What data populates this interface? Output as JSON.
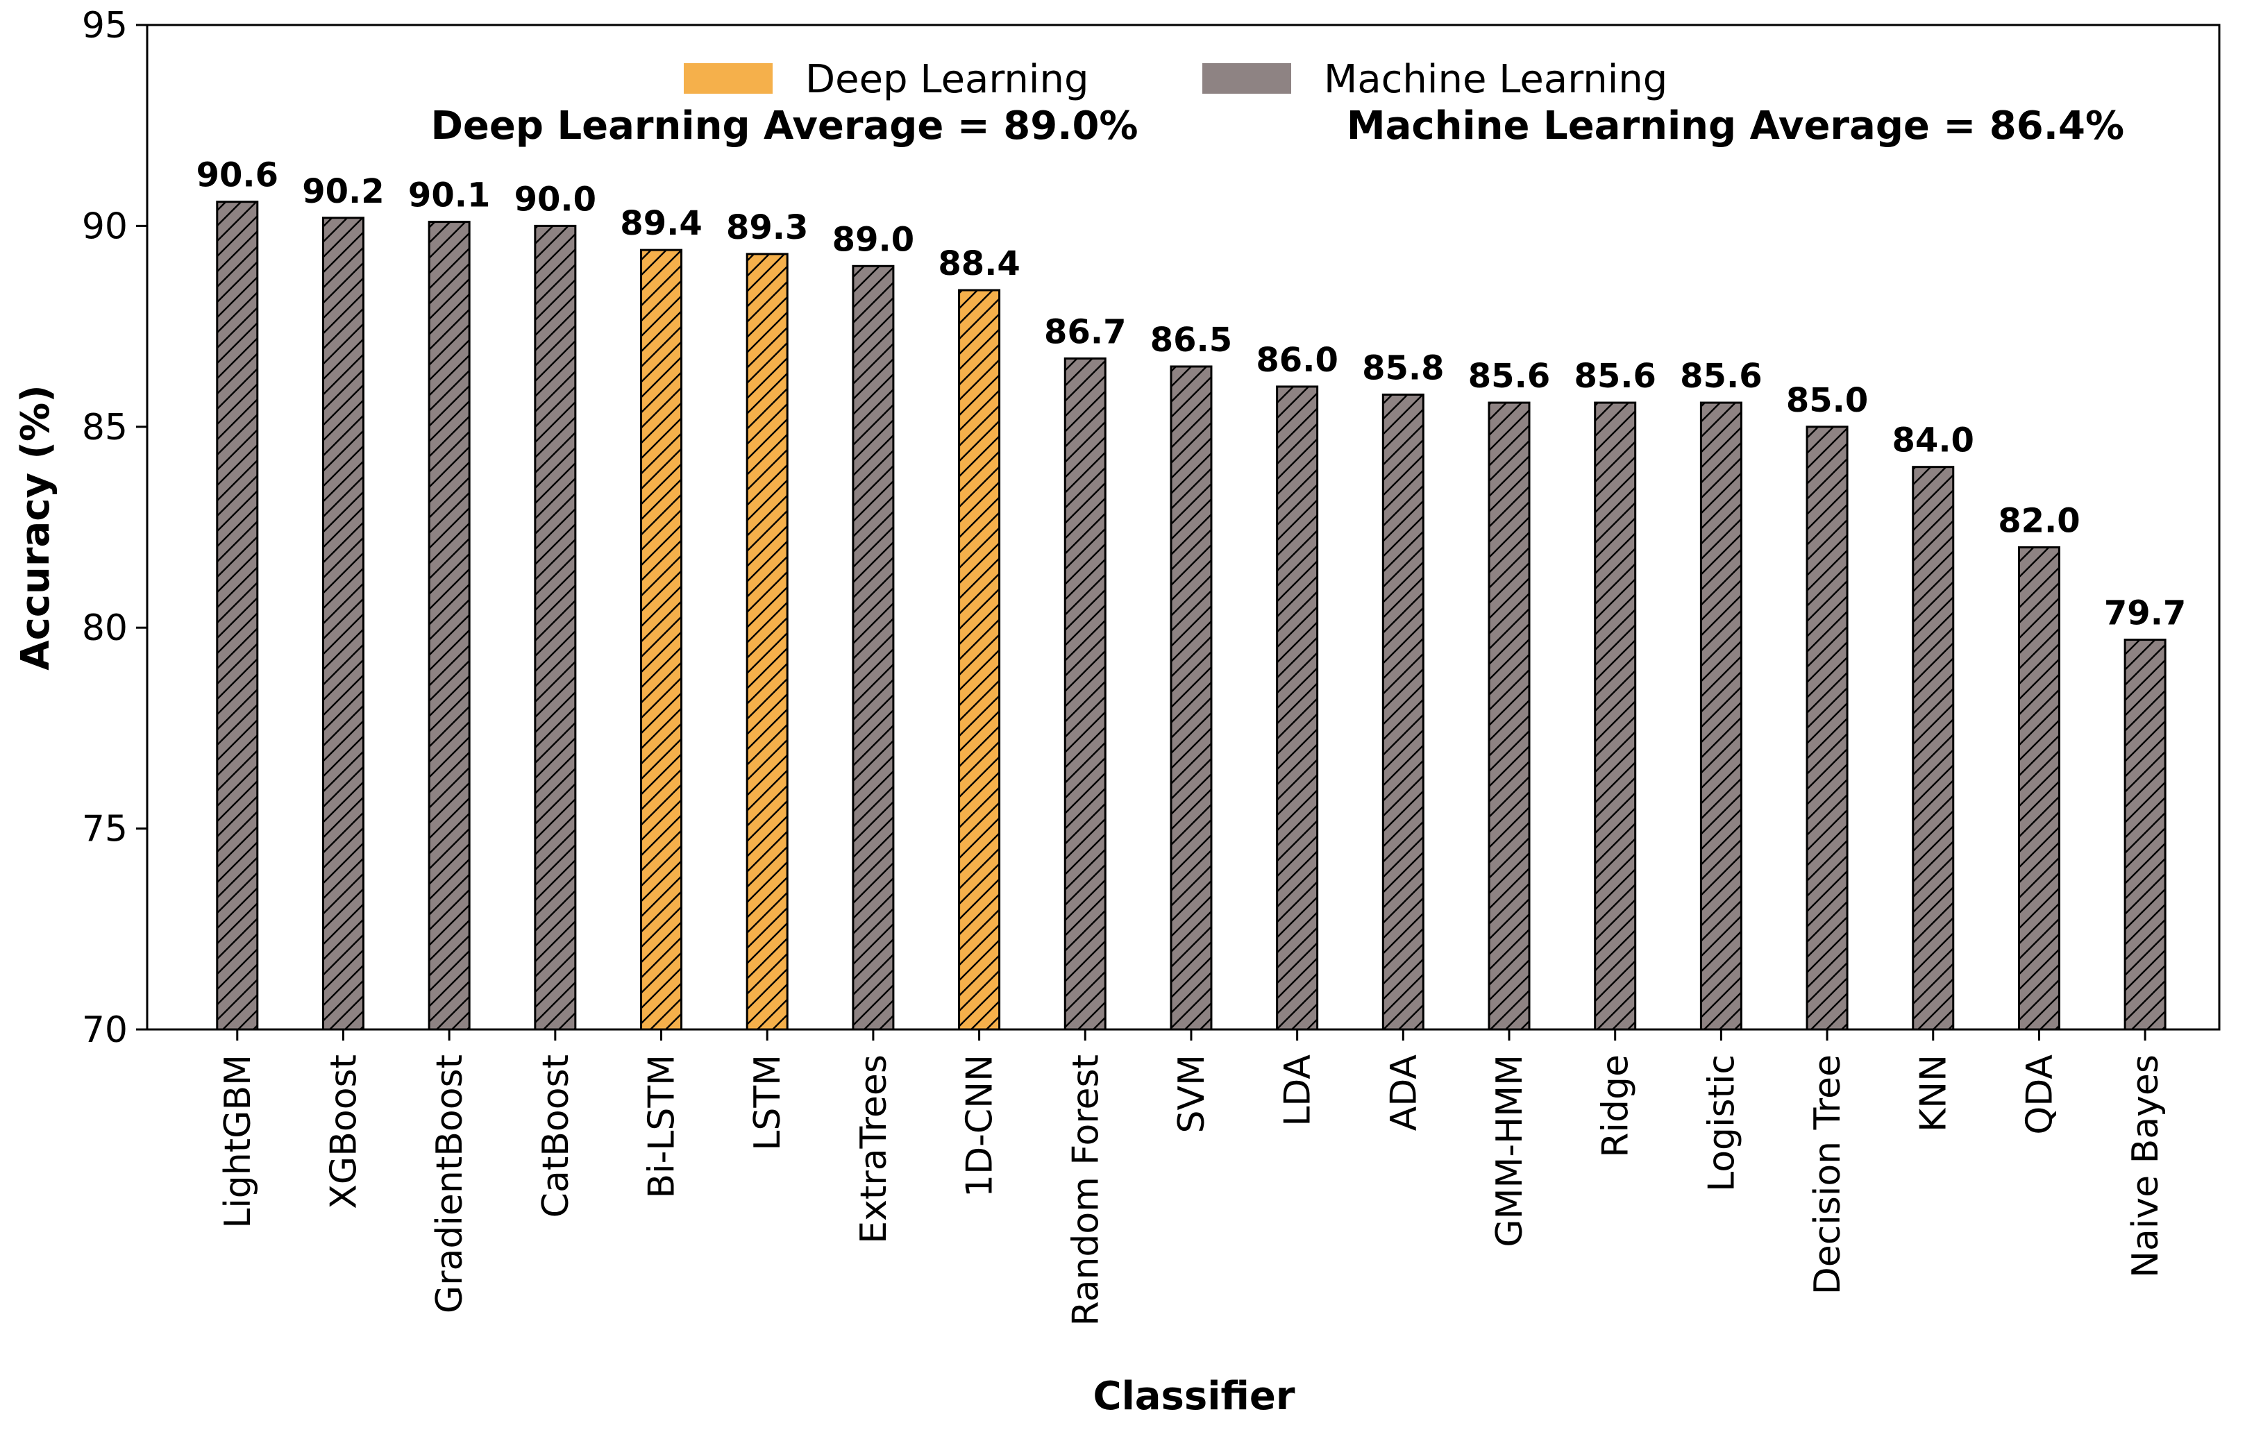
{
  "chart_data": {
    "type": "bar",
    "title": "",
    "xlabel": "Classifier",
    "ylabel": "Accuracy (%)",
    "ylim": [
      70,
      95
    ],
    "yticks": [
      70,
      75,
      80,
      85,
      90,
      95
    ],
    "grid": false,
    "legend_position": "top-center",
    "categories": [
      "LightGBM",
      "XGBoost",
      "GradientBoost",
      "CatBoost",
      "Bi-LSTM",
      "LSTM",
      "ExtraTrees",
      "1D-CNN",
      "Random Forest",
      "SVM",
      "LDA",
      "ADA",
      "GMM-HMM",
      "Ridge",
      "Logistic",
      "Decision Tree",
      "KNN",
      "QDA",
      "Naive Bayes"
    ],
    "values": [
      90.6,
      90.2,
      90.1,
      90.0,
      89.4,
      89.3,
      89.0,
      88.4,
      86.7,
      86.5,
      86.0,
      85.8,
      85.6,
      85.6,
      85.6,
      85.0,
      84.0,
      82.0,
      79.7
    ],
    "value_labels": [
      "90.6",
      "90.2",
      "90.1",
      "90.0",
      "89.4",
      "89.3",
      "89.0",
      "88.4",
      "86.7",
      "86.5",
      "86.0",
      "85.8",
      "85.6",
      "85.6",
      "85.6",
      "85.0",
      "84.0",
      "82.0",
      "79.7"
    ],
    "groups": [
      "Machine Learning",
      "Machine Learning",
      "Machine Learning",
      "Machine Learning",
      "Deep Learning",
      "Deep Learning",
      "Machine Learning",
      "Deep Learning",
      "Machine Learning",
      "Machine Learning",
      "Machine Learning",
      "Machine Learning",
      "Machine Learning",
      "Machine Learning",
      "Machine Learning",
      "Machine Learning",
      "Machine Learning",
      "Machine Learning",
      "Machine Learning"
    ],
    "series": [
      {
        "name": "Deep Learning",
        "color": "#F5B04B"
      },
      {
        "name": "Machine Learning",
        "color": "#8E8383"
      }
    ],
    "annotations": {
      "deep_learning_average": "Deep Learning Average = 89.0%",
      "machine_learning_average": "Machine Learning Average = 86.4%"
    }
  }
}
